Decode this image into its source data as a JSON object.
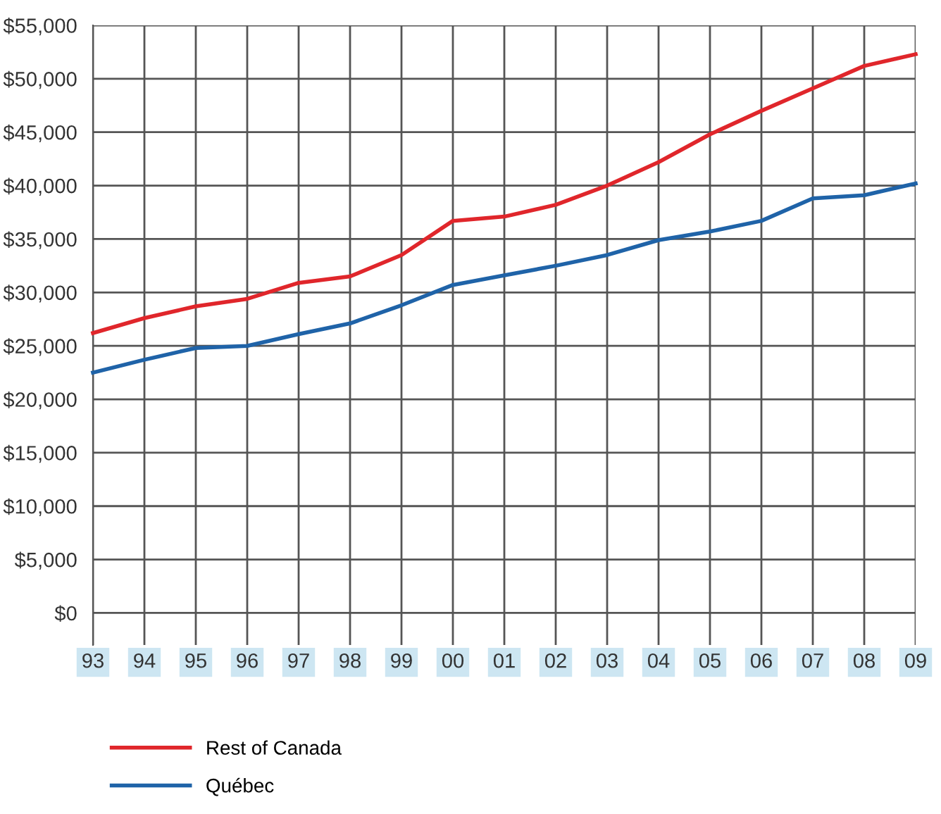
{
  "chart_data": {
    "type": "line",
    "categories": [
      "93",
      "94",
      "95",
      "96",
      "97",
      "98",
      "99",
      "00",
      "01",
      "02",
      "03",
      "04",
      "05",
      "06",
      "07",
      "08",
      "09"
    ],
    "series": [
      {
        "name": "Rest of Canada",
        "color": "#e0262b",
        "values": [
          26200,
          27600,
          28700,
          29400,
          30900,
          31500,
          33500,
          36700,
          37100,
          38200,
          40000,
          42200,
          44800,
          47000,
          49100,
          51200,
          52300
        ]
      },
      {
        "name": "Québec",
        "color": "#1f63a8",
        "values": [
          22500,
          23700,
          24800,
          25000,
          26100,
          27100,
          28800,
          30700,
          31600,
          32500,
          33500,
          34900,
          35700,
          36700,
          38800,
          39100,
          40200
        ]
      }
    ],
    "ylim": [
      -3000,
      55000
    ],
    "yticks": [
      {
        "value": 0,
        "label": "$0"
      },
      {
        "value": 5000,
        "label": "$5,000"
      },
      {
        "value": 10000,
        "label": "$10,000"
      },
      {
        "value": 15000,
        "label": "$15,000"
      },
      {
        "value": 20000,
        "label": "$20,000"
      },
      {
        "value": 25000,
        "label": "$25,000"
      },
      {
        "value": 30000,
        "label": "$30,000"
      },
      {
        "value": 35000,
        "label": "$35,000"
      },
      {
        "value": 40000,
        "label": "$40,000"
      },
      {
        "value": 45000,
        "label": "$45,000"
      },
      {
        "value": 50000,
        "label": "$50,000"
      },
      {
        "value": 55000,
        "label": "$55,000"
      }
    ],
    "grid": true,
    "legend": "bottom left",
    "marker": "none",
    "line_style": "solid"
  }
}
